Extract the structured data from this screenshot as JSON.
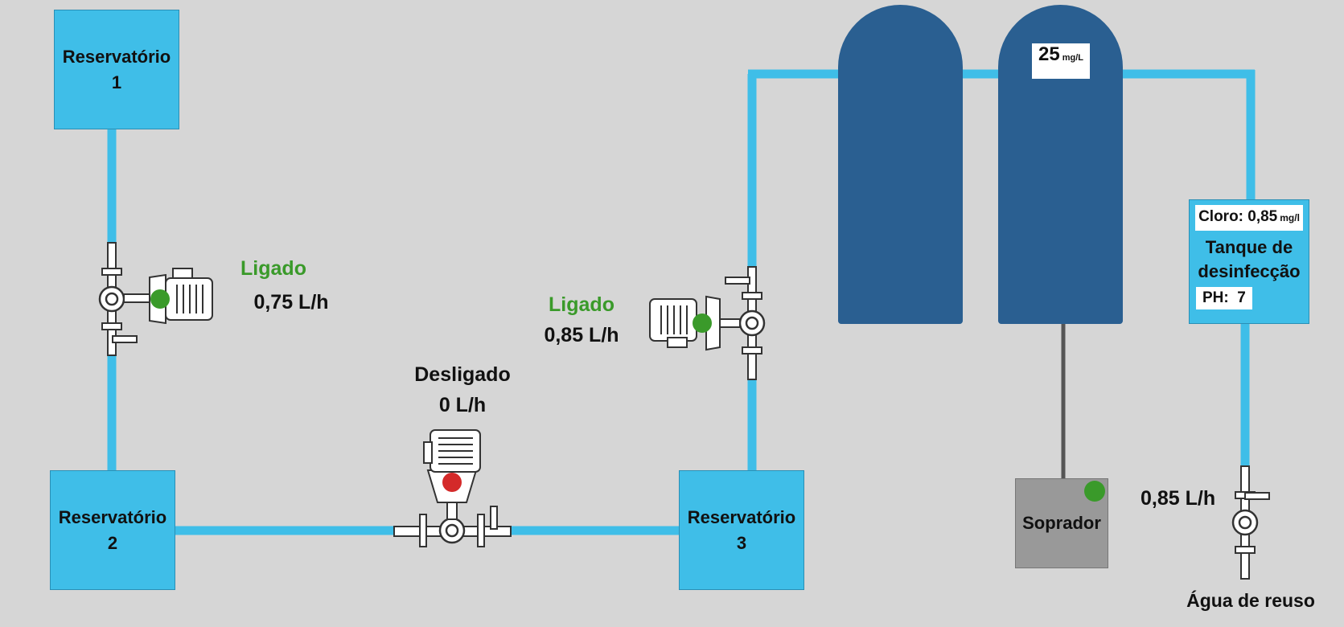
{
  "reservoirs": [
    {
      "name": "Reservatório",
      "number": "1"
    },
    {
      "name": "Reservatório",
      "number": "2"
    },
    {
      "name": "Reservatório",
      "number": "3"
    }
  ],
  "pumps": [
    {
      "status": "Ligado",
      "flow": "0,75 L/h",
      "status_color": "#3a9a2a"
    },
    {
      "status": "Desligado",
      "flow": "0 L/h",
      "status_color": "#111111"
    },
    {
      "status": "Ligado",
      "flow": "0,85 L/h",
      "status_color": "#3a9a2a"
    }
  ],
  "reactor": {
    "value": "25",
    "unit": "mg/L"
  },
  "disinfection_tank": {
    "chlorine_label": "Cloro: 0,85",
    "chlorine_unit": "mg/l",
    "title_line1": "Tanque de",
    "title_line2": "desinfecção",
    "ph_label": "PH:  7"
  },
  "blower": {
    "label": "Soprador"
  },
  "outlet": {
    "flow": "0,85 L/h",
    "label": "Água de reuso"
  },
  "colors": {
    "pipe": "#3fbee8",
    "tank": "#2a5f91",
    "on": "#3a9a2a",
    "off": "#d42a2a"
  }
}
